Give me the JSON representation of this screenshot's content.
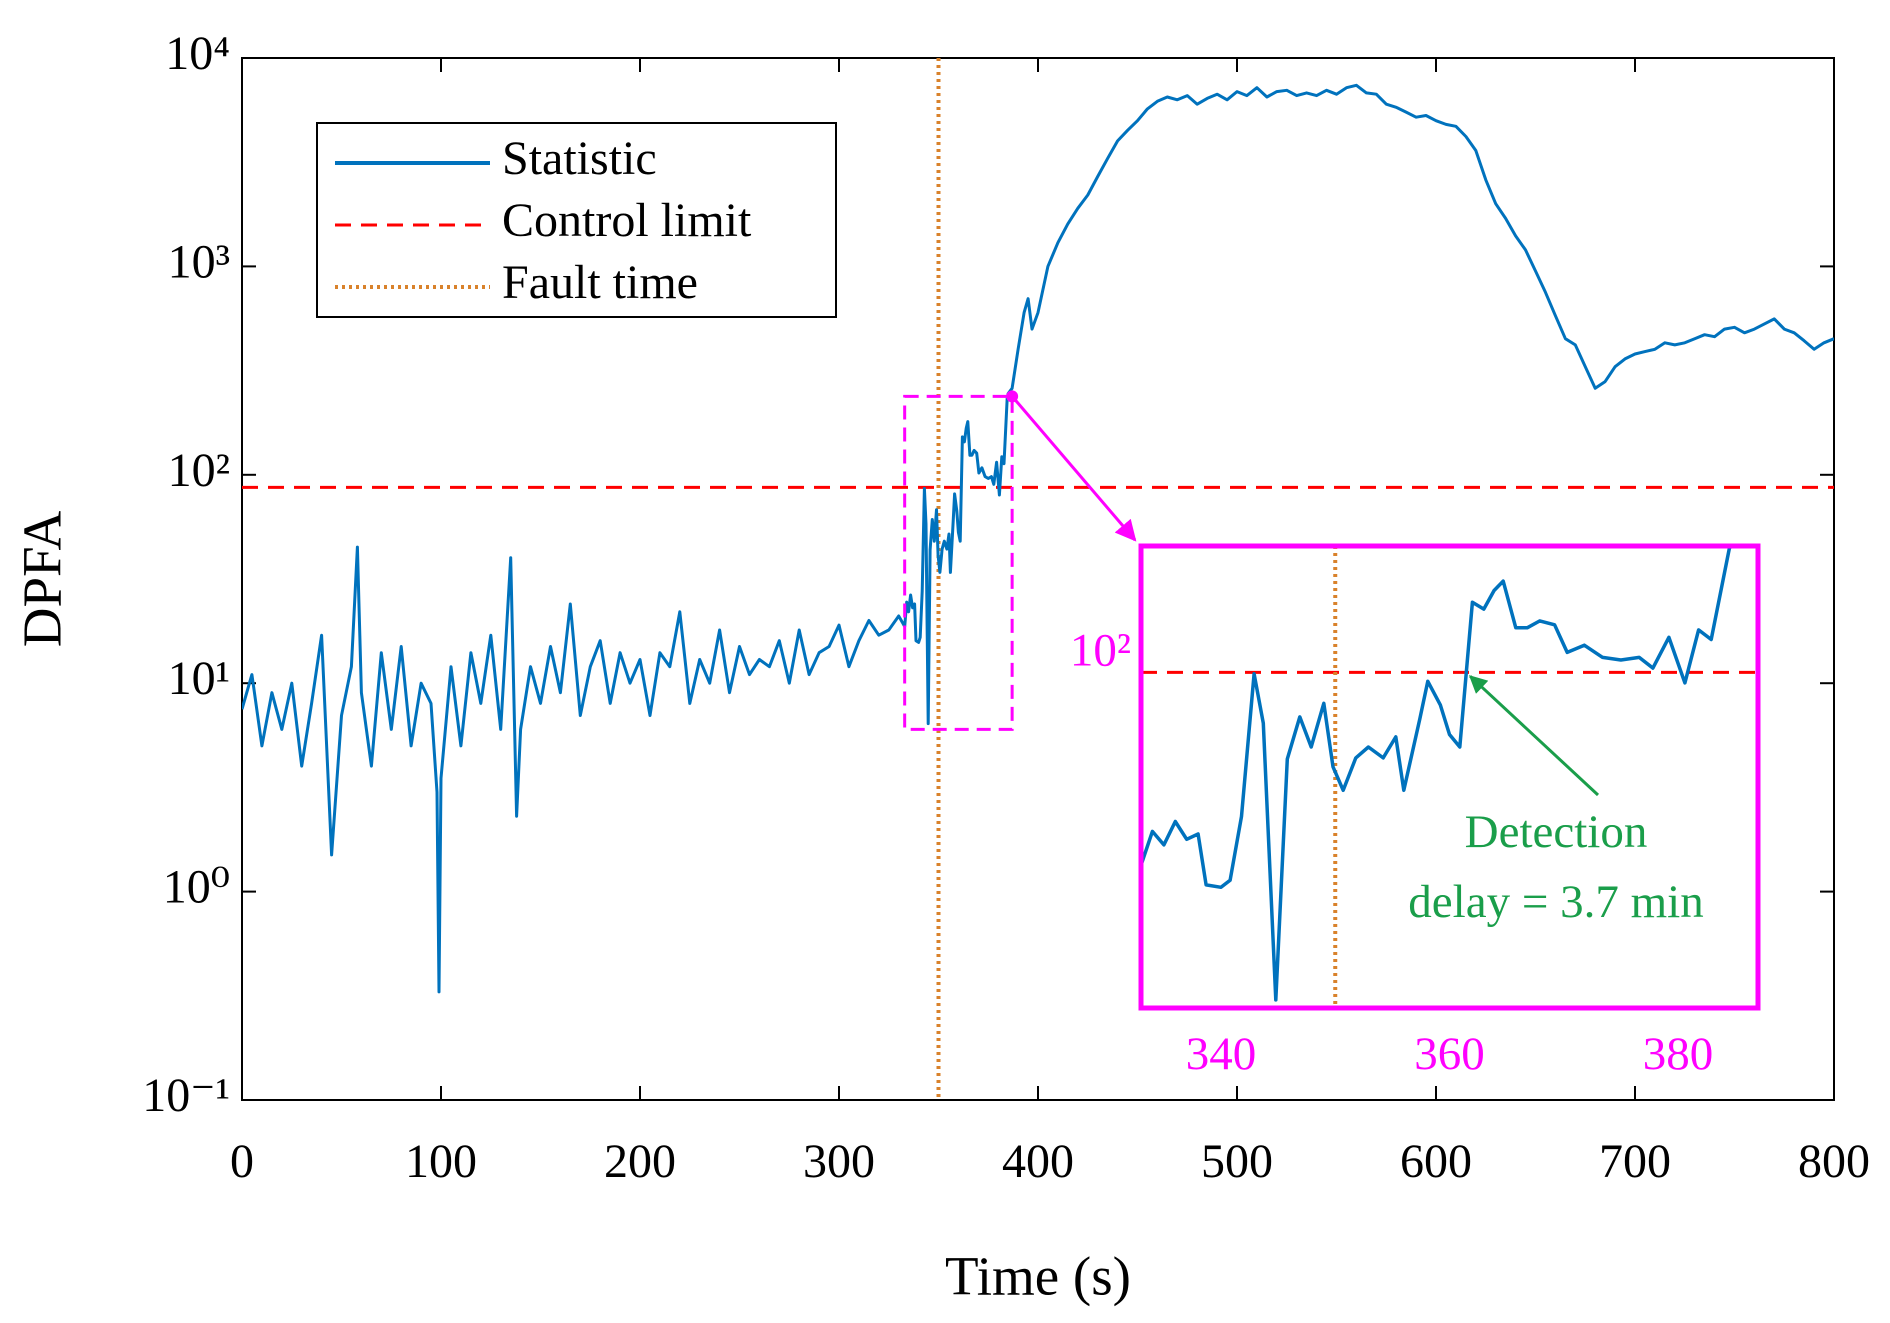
{
  "chart_data": {
    "type": "line",
    "xlabel": "Time (s)",
    "ylabel": "DPFA",
    "yscale": "log",
    "legend": "upper left",
    "xlim": [
      0,
      800
    ],
    "xticks": [
      0,
      100,
      200,
      300,
      400,
      500,
      600,
      700,
      800
    ],
    "ylim": [
      0.1,
      10000
    ],
    "yticks": [
      {
        "value": 0.1,
        "label": "10⁻¹"
      },
      {
        "value": 1,
        "label": "10⁰"
      },
      {
        "value": 10,
        "label": "10¹"
      },
      {
        "value": 100,
        "label": "10²"
      },
      {
        "value": 1000,
        "label": "10³"
      },
      {
        "value": 10000,
        "label": "10⁴"
      }
    ],
    "series": [
      {
        "name": "Statistic",
        "color": "#0072bd",
        "x": [
          0,
          5,
          10,
          15,
          20,
          25,
          30,
          35,
          40,
          45,
          50,
          55,
          58,
          60,
          65,
          70,
          75,
          80,
          85,
          90,
          95,
          98,
          99,
          100,
          105,
          110,
          115,
          120,
          125,
          130,
          135,
          138,
          140,
          145,
          150,
          155,
          160,
          165,
          170,
          175,
          180,
          185,
          190,
          195,
          200,
          205,
          210,
          215,
          220,
          225,
          230,
          235,
          240,
          245,
          250,
          255,
          260,
          265,
          270,
          275,
          280,
          285,
          290,
          295,
          300,
          305,
          310,
          315,
          320,
          325,
          330,
          333,
          334,
          335,
          336,
          337,
          338,
          338.7,
          340,
          340.8,
          341.8,
          342.9,
          343.7,
          344.8,
          345.8,
          346.9,
          347.9,
          349,
          349.8,
          350.7,
          351.8,
          352.9,
          354.2,
          355.3,
          356,
          357.4,
          358.1,
          359.2,
          360,
          360.9,
          362,
          363,
          363.9,
          364.7,
          365.8,
          366.8,
          367.9,
          369.2,
          370.3,
          371.8,
          373.4,
          375,
          376.6,
          377.8,
          379.2,
          380.6,
          381.8,
          382.9,
          384.5,
          385,
          387,
          390,
          393,
          395,
          397,
          400,
          405,
          410,
          415,
          420,
          425,
          430,
          435,
          440,
          445,
          450,
          455,
          460,
          465,
          470,
          475,
          480,
          485,
          490,
          495,
          500,
          505,
          510,
          515,
          520,
          525,
          530,
          535,
          540,
          545,
          550,
          555,
          560,
          565,
          570,
          575,
          580,
          585,
          590,
          595,
          600,
          605,
          610,
          615,
          620,
          625,
          630,
          635,
          640,
          645,
          650,
          655,
          660,
          665,
          670,
          675,
          680,
          685,
          690,
          695,
          700,
          705,
          710,
          715,
          720,
          725,
          730,
          735,
          740,
          745,
          750,
          755,
          760,
          765,
          770,
          775,
          780,
          785,
          790,
          795,
          800
        ],
        "values": [
          7.5,
          11,
          5,
          9,
          6,
          10,
          4,
          8,
          17,
          1.5,
          7,
          12,
          45,
          9,
          4,
          14,
          6,
          15,
          5,
          10,
          8,
          3,
          0.33,
          3.5,
          12,
          5,
          14,
          8,
          17,
          6,
          40,
          2.3,
          6,
          12,
          8,
          15,
          9,
          24,
          7,
          12,
          16,
          8,
          14,
          10,
          13,
          7,
          14,
          12,
          22,
          8,
          13,
          10,
          18,
          9,
          15,
          11,
          13,
          12,
          16,
          10,
          18,
          11,
          14,
          15,
          19,
          12,
          16,
          20,
          17,
          18,
          21,
          18.7,
          24.5,
          22,
          26.5,
          23,
          24,
          16,
          15.7,
          16.6,
          27.6,
          86,
          58,
          6.4,
          43.6,
          61,
          48,
          68,
          41,
          34,
          44,
          48,
          44,
          52,
          34,
          60,
          81,
          67,
          53,
          48,
          152,
          144,
          167,
          180,
          124,
          124,
          131,
          127,
          102,
          108,
          98,
          96,
          98,
          90,
          115,
          80,
          122,
          113,
          234,
          245,
          260,
          400,
          600,
          700,
          500,
          600,
          1000,
          1300,
          1600,
          1900,
          2200,
          2700,
          3300,
          4000,
          4500,
          5000,
          5700,
          6200,
          6500,
          6300,
          6600,
          6000,
          6400,
          6700,
          6300,
          6900,
          6600,
          7200,
          6500,
          6900,
          7000,
          6600,
          6800,
          6600,
          7000,
          6700,
          7200,
          7400,
          6800,
          6700,
          6000,
          5800,
          5500,
          5200,
          5300,
          5000,
          4800,
          4700,
          4200,
          3600,
          2600,
          2000,
          1700,
          1400,
          1200,
          950,
          750,
          580,
          450,
          420,
          330,
          260,
          280,
          330,
          360,
          380,
          390,
          400,
          430,
          420,
          430,
          450,
          470,
          460,
          500,
          510,
          480,
          500,
          530,
          560,
          500,
          480,
          440,
          400,
          430,
          450
        ]
      }
    ],
    "control_limit": {
      "name": "Control limit",
      "color": "#ff0000",
      "value": 87
    },
    "fault_time": {
      "name": "Fault time",
      "color": "#d9822b",
      "value": 350
    },
    "inset": {
      "color": "#ff00ff",
      "xlim": [
        333,
        387
      ],
      "ylim": [
        6,
        238
      ],
      "xticks": [
        340,
        360,
        380
      ],
      "yticks": [
        {
          "value": 100,
          "label": "10²"
        }
      ],
      "annotation": {
        "text": [
          "Detection",
          "delay = 3.7 min"
        ],
        "color": "#1a9e4a"
      }
    }
  }
}
